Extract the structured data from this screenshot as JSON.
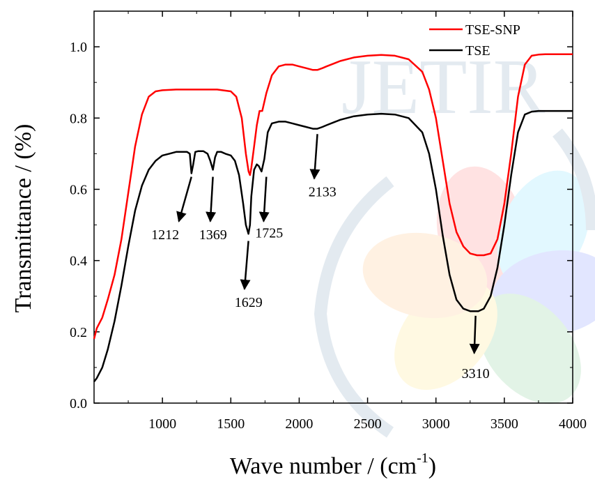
{
  "chart_data": {
    "type": "line",
    "xlabel": "Wave number / (cm",
    "xlabel_sup": "-1",
    "xlabel_close": ")",
    "ylabel": "Transmittance / (%)",
    "xlim": [
      500,
      4000
    ],
    "ylim": [
      0.0,
      1.1
    ],
    "x_ticks": [
      1000,
      1500,
      2000,
      2500,
      3000,
      3500,
      4000
    ],
    "y_ticks": [
      0.0,
      0.2,
      0.4,
      0.6,
      0.8,
      1.0
    ],
    "y_tick_labels": [
      "0.0",
      "0.2",
      "0.4",
      "0.6",
      "0.8",
      "1.0"
    ],
    "grid": false,
    "legend_position": "top-right",
    "watermark": "JETIR",
    "series": [
      {
        "name": "TSE-SNP",
        "color": "#ff0000",
        "x": [
          500,
          520,
          560,
          600,
          650,
          700,
          750,
          800,
          850,
          900,
          950,
          1000,
          1100,
          1200,
          1300,
          1400,
          1500,
          1540,
          1580,
          1610,
          1630,
          1640,
          1650,
          1670,
          1690,
          1710,
          1730,
          1760,
          1800,
          1850,
          1900,
          1950,
          2000,
          2050,
          2100,
          2133,
          2170,
          2200,
          2300,
          2400,
          2500,
          2600,
          2700,
          2800,
          2900,
          2950,
          3000,
          3050,
          3100,
          3150,
          3200,
          3250,
          3300,
          3350,
          3400,
          3450,
          3500,
          3550,
          3600,
          3650,
          3700,
          3750,
          3800,
          3900,
          4000
        ],
        "values": [
          0.18,
          0.21,
          0.24,
          0.29,
          0.36,
          0.46,
          0.59,
          0.72,
          0.81,
          0.86,
          0.875,
          0.878,
          0.88,
          0.88,
          0.88,
          0.88,
          0.875,
          0.86,
          0.8,
          0.7,
          0.65,
          0.64,
          0.66,
          0.72,
          0.78,
          0.82,
          0.82,
          0.87,
          0.92,
          0.945,
          0.95,
          0.95,
          0.945,
          0.94,
          0.935,
          0.935,
          0.94,
          0.945,
          0.96,
          0.97,
          0.975,
          0.977,
          0.975,
          0.965,
          0.93,
          0.88,
          0.8,
          0.68,
          0.56,
          0.48,
          0.44,
          0.42,
          0.415,
          0.415,
          0.42,
          0.46,
          0.56,
          0.7,
          0.86,
          0.95,
          0.975,
          0.978,
          0.979,
          0.979,
          0.979
        ]
      },
      {
        "name": "TSE",
        "color": "#000000",
        "x": [
          500,
          520,
          560,
          600,
          650,
          700,
          750,
          800,
          850,
          900,
          950,
          1000,
          1050,
          1100,
          1150,
          1180,
          1200,
          1212,
          1225,
          1240,
          1260,
          1280,
          1300,
          1330,
          1350,
          1369,
          1385,
          1400,
          1430,
          1460,
          1500,
          1530,
          1560,
          1590,
          1610,
          1629,
          1640,
          1650,
          1670,
          1690,
          1705,
          1725,
          1745,
          1770,
          1800,
          1850,
          1900,
          1950,
          2000,
          2050,
          2100,
          2133,
          2170,
          2200,
          2300,
          2400,
          2500,
          2600,
          2700,
          2800,
          2900,
          2950,
          3000,
          3050,
          3100,
          3150,
          3200,
          3250,
          3310,
          3350,
          3400,
          3450,
          3500,
          3550,
          3600,
          3650,
          3700,
          3750,
          3800,
          3900,
          4000
        ],
        "values": [
          0.06,
          0.07,
          0.1,
          0.15,
          0.23,
          0.33,
          0.44,
          0.54,
          0.61,
          0.655,
          0.68,
          0.695,
          0.7,
          0.705,
          0.705,
          0.705,
          0.7,
          0.645,
          0.67,
          0.705,
          0.707,
          0.707,
          0.707,
          0.7,
          0.68,
          0.655,
          0.69,
          0.705,
          0.705,
          0.7,
          0.695,
          0.68,
          0.64,
          0.56,
          0.5,
          0.475,
          0.5,
          0.58,
          0.655,
          0.67,
          0.665,
          0.65,
          0.685,
          0.76,
          0.785,
          0.79,
          0.79,
          0.785,
          0.78,
          0.775,
          0.77,
          0.77,
          0.775,
          0.78,
          0.795,
          0.805,
          0.81,
          0.812,
          0.81,
          0.8,
          0.76,
          0.7,
          0.6,
          0.47,
          0.36,
          0.29,
          0.265,
          0.258,
          0.258,
          0.265,
          0.3,
          0.38,
          0.5,
          0.64,
          0.76,
          0.81,
          0.818,
          0.82,
          0.82,
          0.82,
          0.82
        ]
      }
    ],
    "annotations": [
      {
        "label": "1212",
        "arrow_from": [
          1212,
          0.635
        ],
        "arrow_to": [
          1120,
          0.51
        ],
        "text_at": [
          1020,
          0.46
        ]
      },
      {
        "label": "1369",
        "arrow_from": [
          1369,
          0.635
        ],
        "arrow_to": [
          1350,
          0.51
        ],
        "text_at": [
          1370,
          0.46
        ]
      },
      {
        "label": "1725",
        "arrow_from": [
          1760,
          0.635
        ],
        "arrow_to": [
          1740,
          0.51
        ],
        "text_at": [
          1780,
          0.465
        ]
      },
      {
        "label": "1629",
        "arrow_from": [
          1629,
          0.455
        ],
        "arrow_to": [
          1600,
          0.32
        ],
        "text_at": [
          1630,
          0.27
        ]
      },
      {
        "label": "2133",
        "arrow_from": [
          2133,
          0.755
        ],
        "arrow_to": [
          2110,
          0.63
        ],
        "text_at": [
          2170,
          0.58
        ]
      },
      {
        "label": "3310",
        "arrow_from": [
          3290,
          0.245
        ],
        "arrow_to": [
          3280,
          0.14
        ],
        "text_at": [
          3290,
          0.07
        ]
      }
    ]
  }
}
